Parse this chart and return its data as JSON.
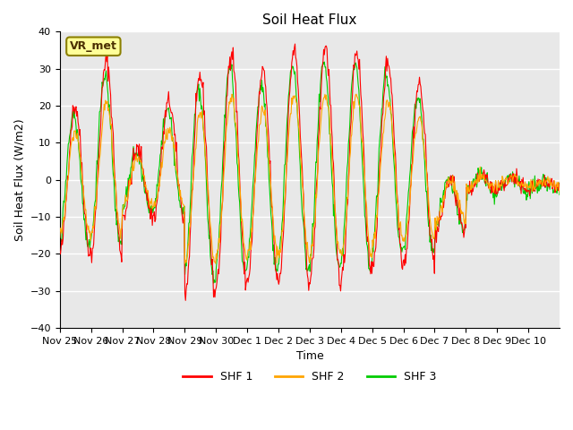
{
  "title": "Soil Heat Flux",
  "ylabel": "Soil Heat Flux (W/m2)",
  "xlabel": "Time",
  "ylim": [
    -40,
    40
  ],
  "yticks": [
    -40,
    -30,
    -20,
    -10,
    0,
    10,
    20,
    30,
    40
  ],
  "colors": {
    "SHF 1": "#ff0000",
    "SHF 2": "#ffa500",
    "SHF 3": "#00cc00"
  },
  "bg_color": "#e8e8e8",
  "annotation_text": "VR_met",
  "annotation_bg": "#ffff99",
  "annotation_border": "#8b8000",
  "tick_labels": [
    "Nov 25",
    "Nov 26",
    "Nov 27",
    "Nov 28",
    "Nov 29",
    "Nov 30",
    "Dec 1",
    "Dec 2",
    "Dec 3",
    "Dec 4",
    "Dec 5",
    "Dec 6",
    "Dec 7",
    "Dec 8",
    "Dec 9",
    "Dec 10"
  ],
  "day_peaks": [
    20,
    32,
    8,
    21,
    28,
    35,
    29,
    35,
    36,
    35,
    32,
    26,
    0,
    3,
    3,
    -2
  ],
  "night_troughs": [
    -20,
    -20,
    -10,
    -10,
    -31,
    -28,
    -27,
    -27,
    -27,
    -27,
    -22,
    -22,
    -15,
    -10,
    -8,
    -8
  ]
}
